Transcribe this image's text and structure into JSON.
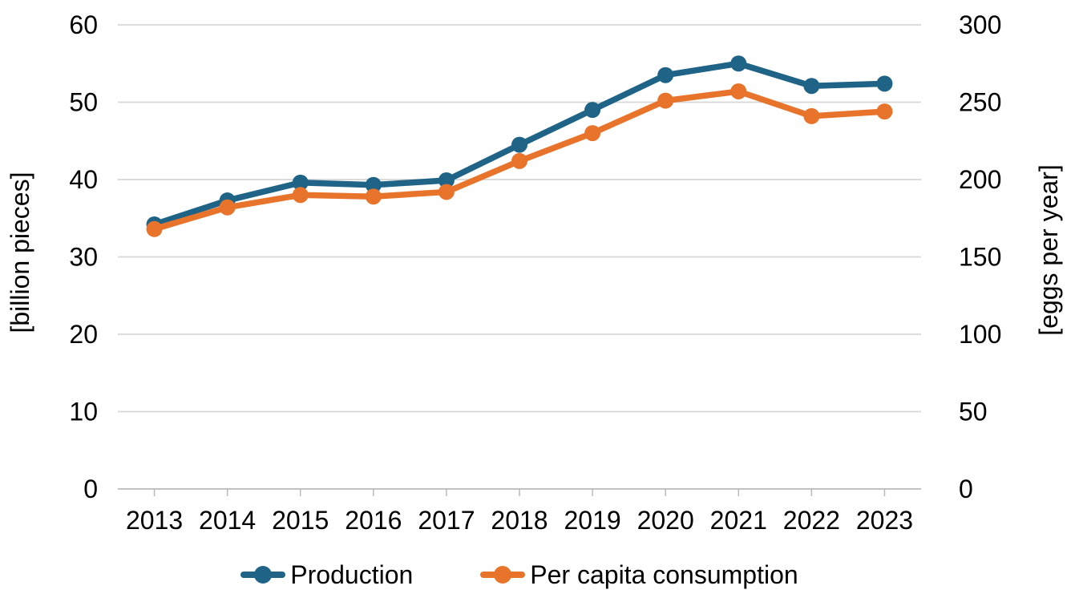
{
  "chart_data": {
    "type": "line",
    "title": "",
    "x_categories": [
      "2013",
      "2014",
      "2015",
      "2016",
      "2017",
      "2018",
      "2019",
      "2020",
      "2021",
      "2022",
      "2023"
    ],
    "series": [
      {
        "name": "Production",
        "axis": "left",
        "color": "#1f6387",
        "values": [
          34.2,
          37.3,
          39.6,
          39.3,
          39.9,
          44.5,
          49.0,
          53.5,
          55.0,
          52.1,
          52.4
        ]
      },
      {
        "name": "Per capita consumption",
        "axis": "right",
        "color": "#e8742c",
        "values": [
          168,
          182,
          190,
          189,
          192,
          212,
          230,
          251,
          257,
          241,
          244
        ]
      }
    ],
    "left_axis": {
      "label": "[billion pieces]",
      "min": 0,
      "max": 60,
      "step": 10,
      "tick_labels": [
        "0",
        "10",
        "20",
        "30",
        "40",
        "50",
        "60"
      ]
    },
    "right_axis": {
      "label": "[eggs per year]",
      "min": 0,
      "max": 300,
      "step": 50,
      "tick_labels": [
        "0",
        "50",
        "100",
        "150",
        "200",
        "250",
        "300"
      ]
    },
    "grid": "horizontal",
    "legend_position": "bottom"
  },
  "style": {
    "grid_color": "#d6d6d6",
    "axis_color": "#b9b9b9",
    "text_color": "#000000",
    "background": "#ffffff"
  }
}
